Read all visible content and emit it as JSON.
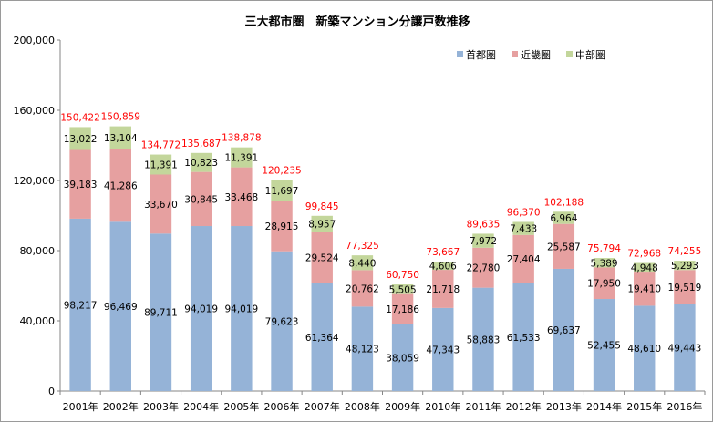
{
  "chart_data": {
    "type": "bar",
    "stacked": true,
    "title": "三大都市圏　新築マンション分譲戸数推移",
    "categories": [
      "2001年",
      "2002年",
      "2003年",
      "2004年",
      "2005年",
      "2006年",
      "2007年",
      "2008年",
      "2009年",
      "2010年",
      "2011年",
      "2012年",
      "2013年",
      "2014年",
      "2015年",
      "2016年"
    ],
    "series": [
      {
        "name": "首都圏",
        "color": "#95b3d7",
        "values": [
          98217,
          96469,
          89711,
          94019,
          94019,
          79623,
          61364,
          48123,
          38059,
          47343,
          58883,
          61533,
          69637,
          52455,
          48610,
          49443
        ]
      },
      {
        "name": "近畿圏",
        "color": "#e6a0a0",
        "values": [
          39183,
          41286,
          33670,
          30845,
          33468,
          28915,
          29524,
          20762,
          17186,
          21718,
          22780,
          27404,
          25587,
          17950,
          19410,
          19519
        ]
      },
      {
        "name": "中部圏",
        "color": "#c3d69b",
        "values": [
          13022,
          13104,
          11391,
          10823,
          11391,
          11697,
          8957,
          8440,
          5505,
          4606,
          7972,
          7433,
          6964,
          5389,
          4948,
          5293
        ]
      }
    ],
    "totals": [
      150422,
      150859,
      134772,
      135687,
      138878,
      120235,
      99845,
      77325,
      60750,
      73667,
      89635,
      96370,
      102188,
      75794,
      72968,
      74255
    ],
    "total_label_color": "#ff0000",
    "y_ticks": [
      "0",
      "40,000",
      "80,000",
      "120,000",
      "160,000",
      "200,000"
    ],
    "ylim": [
      0,
      200000
    ],
    "grid": false,
    "legend": "top-right"
  }
}
